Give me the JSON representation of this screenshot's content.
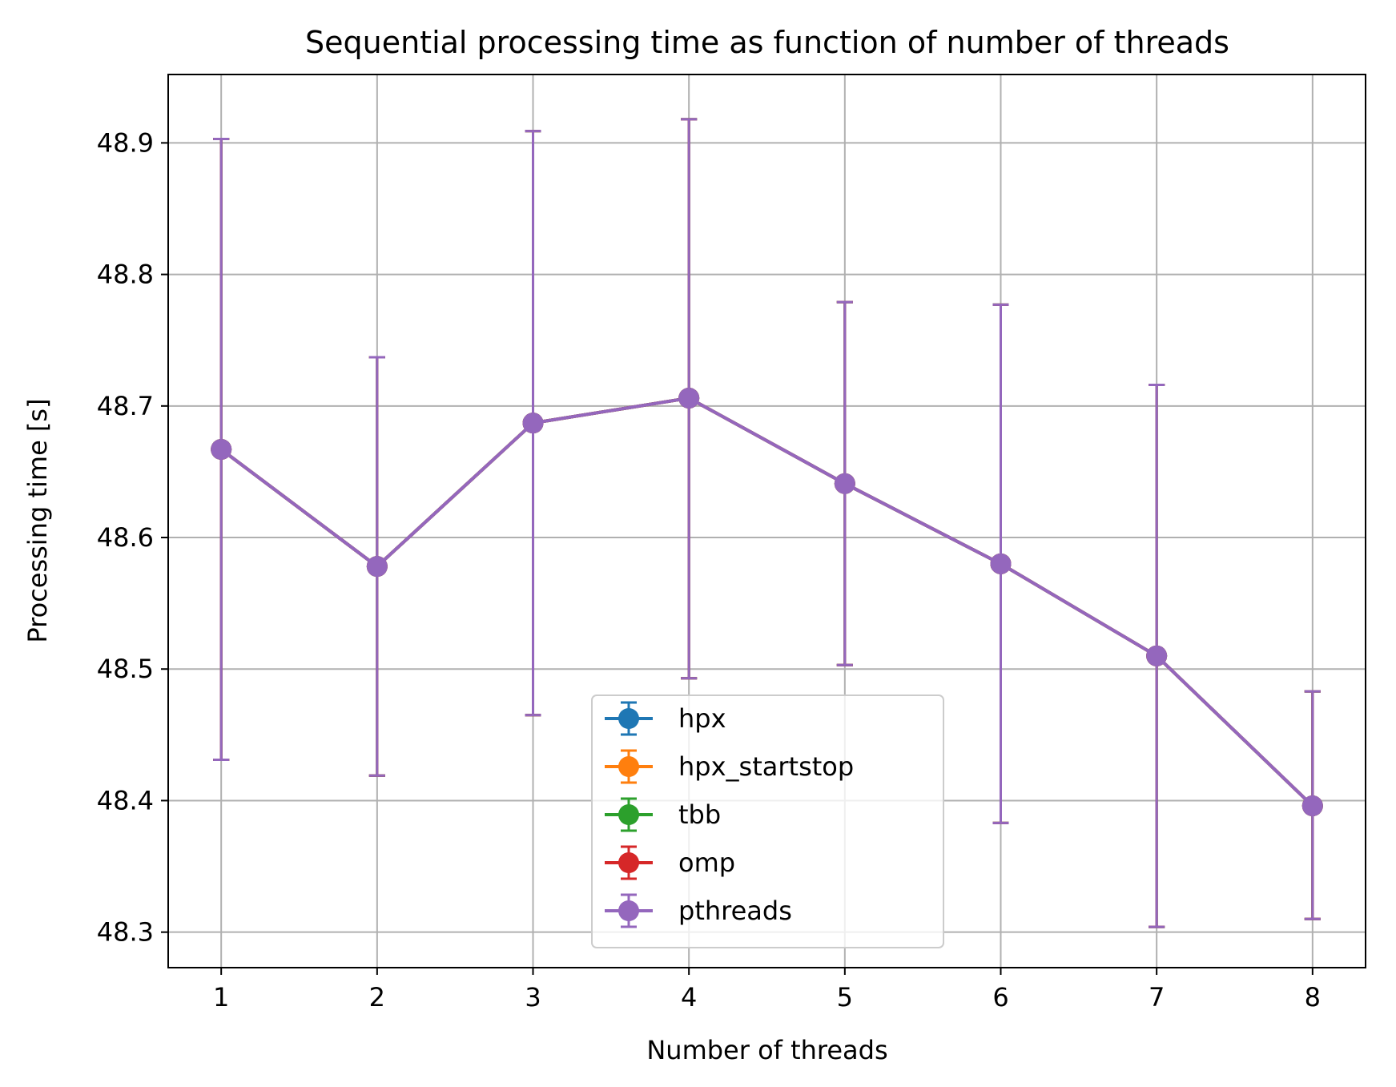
{
  "chart_data": {
    "type": "line",
    "title": "Sequential processing time as function of number of threads",
    "xlabel": "Number of threads",
    "ylabel": "Processing time [s]",
    "x": [
      1,
      2,
      3,
      4,
      5,
      6,
      7,
      8
    ],
    "xlim": [
      0.66,
      8.34
    ],
    "ylim": [
      48.273,
      48.952
    ],
    "xticks": [
      1,
      2,
      3,
      4,
      5,
      6,
      7,
      8
    ],
    "yticks": [
      48.3,
      48.4,
      48.5,
      48.6,
      48.7,
      48.8,
      48.9
    ],
    "ytick_labels": [
      "48.3",
      "48.4",
      "48.5",
      "48.6",
      "48.7",
      "48.8",
      "48.9"
    ],
    "xtick_labels": [
      "1",
      "2",
      "3",
      "4",
      "5",
      "6",
      "7",
      "8"
    ],
    "grid": true,
    "legend_position": "lower-center",
    "error_bars": true,
    "series": [
      {
        "name": "hpx",
        "color": "#1f77b4",
        "values": [
          48.667,
          48.578,
          48.687,
          48.706,
          48.641,
          48.58,
          48.51,
          48.396
        ],
        "yerr_low": [
          48.431,
          48.419,
          48.465,
          48.493,
          48.503,
          48.383,
          48.304,
          48.31
        ],
        "yerr_high": [
          48.903,
          48.737,
          48.909,
          48.918,
          48.779,
          48.777,
          48.716,
          48.483
        ]
      },
      {
        "name": "hpx_startstop",
        "color": "#ff7f0e",
        "values": [
          48.667,
          48.578,
          48.687,
          48.706,
          48.641,
          48.58,
          48.51,
          48.396
        ],
        "yerr_low": [
          48.431,
          48.419,
          48.465,
          48.493,
          48.503,
          48.383,
          48.304,
          48.31
        ],
        "yerr_high": [
          48.903,
          48.737,
          48.909,
          48.918,
          48.779,
          48.777,
          48.716,
          48.483
        ]
      },
      {
        "name": "tbb",
        "color": "#2ca02c",
        "values": [
          48.667,
          48.578,
          48.687,
          48.706,
          48.641,
          48.58,
          48.51,
          48.396
        ],
        "yerr_low": [
          48.431,
          48.419,
          48.465,
          48.493,
          48.503,
          48.383,
          48.304,
          48.31
        ],
        "yerr_high": [
          48.903,
          48.737,
          48.909,
          48.918,
          48.779,
          48.777,
          48.716,
          48.483
        ]
      },
      {
        "name": "omp",
        "color": "#d62728",
        "values": [
          48.667,
          48.578,
          48.687,
          48.706,
          48.641,
          48.58,
          48.51,
          48.396
        ],
        "yerr_low": [
          48.431,
          48.419,
          48.465,
          48.493,
          48.503,
          48.383,
          48.304,
          48.31
        ],
        "yerr_high": [
          48.903,
          48.737,
          48.909,
          48.918,
          48.779,
          48.777,
          48.716,
          48.483
        ]
      },
      {
        "name": "pthreads",
        "color": "#9467bd",
        "values": [
          48.667,
          48.578,
          48.687,
          48.706,
          48.641,
          48.58,
          48.51,
          48.396
        ],
        "yerr_low": [
          48.431,
          48.419,
          48.465,
          48.493,
          48.503,
          48.383,
          48.304,
          48.31
        ],
        "yerr_high": [
          48.903,
          48.737,
          48.909,
          48.918,
          48.779,
          48.777,
          48.716,
          48.483
        ]
      }
    ]
  }
}
